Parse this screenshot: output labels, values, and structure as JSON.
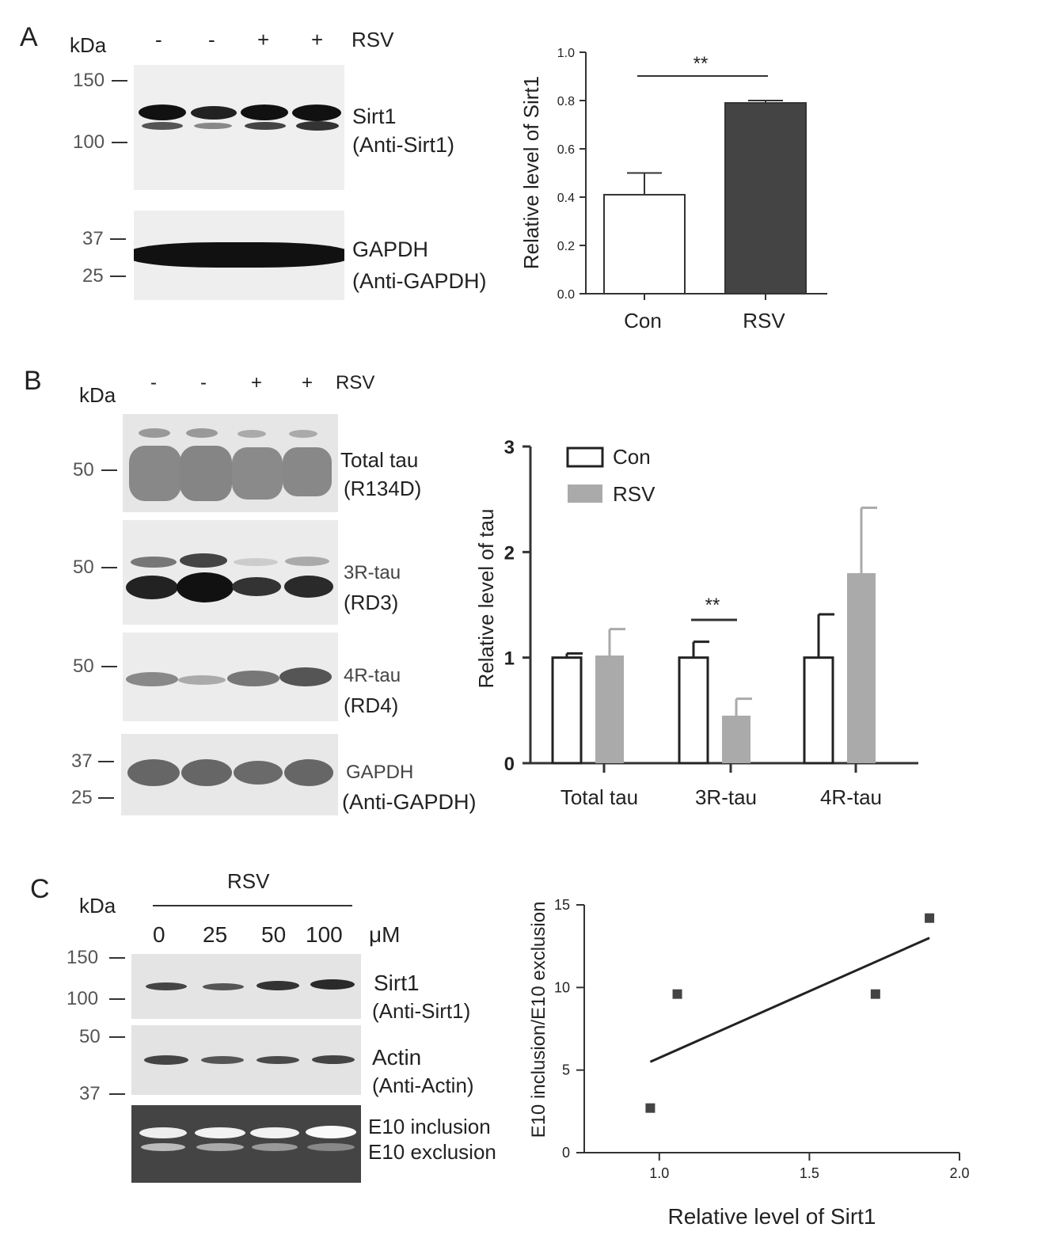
{
  "panelA": {
    "letter": "A",
    "kda": "kDa",
    "lanes": [
      "-",
      "-",
      "+",
      "+"
    ],
    "treatment": "RSV",
    "markers_top": [
      "150",
      "100"
    ],
    "markers_bottom": [
      "37",
      "25"
    ],
    "blot1_label": "Sirt1",
    "blot1_antibody": "(Anti-Sirt1)",
    "blot2_label": "GAPDH",
    "blot2_antibody": "(Anti-GAPDH)"
  },
  "panelB": {
    "letter": "B",
    "kda": "kDa",
    "lanes": [
      "-",
      "-",
      "+",
      "+"
    ],
    "treatment": "RSV",
    "blots": [
      {
        "marker": "50",
        "label": "Total tau",
        "antibody": "(R134D)"
      },
      {
        "marker": "50",
        "label": "3R-tau",
        "antibody": "(RD3)"
      },
      {
        "marker": "50",
        "label": "4R-tau",
        "antibody": "(RD4)"
      }
    ],
    "gapdh_markers": [
      "37",
      "25"
    ],
    "gapdh_label": "GAPDH",
    "gapdh_antibody": "(Anti-GAPDH)"
  },
  "panelC": {
    "letter": "C",
    "kda": "kDa",
    "treatment": "RSV",
    "doses": [
      "0",
      "25",
      "50",
      "100"
    ],
    "unit": "μM",
    "markers_sirt1": [
      "150",
      "100"
    ],
    "markers_actin": [
      "50",
      "37"
    ],
    "sirt1_label": "Sirt1",
    "sirt1_antibody": "(Anti-Sirt1)",
    "actin_label": "Actin",
    "actin_antibody": "(Anti-Actin)",
    "gel_label_top": "E10 inclusion",
    "gel_label_bottom": "E10 exclusion"
  },
  "chart_data": [
    {
      "type": "bar",
      "categories": [
        "Con",
        "RSV"
      ],
      "values": [
        0.41,
        0.79
      ],
      "errors": [
        0.09,
        0.01
      ],
      "ylabel": "Relative level of Sirt1",
      "ylim": [
        0,
        1.0
      ],
      "yticks": [
        "0.0",
        "0.2",
        "0.4",
        "0.6",
        "0.8",
        "1.0"
      ],
      "significance": "**",
      "colors": [
        "#ffffff",
        "#444444"
      ]
    },
    {
      "type": "bar",
      "categories": [
        "Total tau",
        "3R-tau",
        "4R-tau"
      ],
      "series": [
        {
          "name": "Con",
          "values": [
            1.0,
            1.0,
            1.0
          ],
          "errors": [
            0.04,
            0.15,
            0.41
          ],
          "color": "#ffffff"
        },
        {
          "name": "RSV",
          "values": [
            1.02,
            0.45,
            1.8
          ],
          "errors": [
            0.25,
            0.16,
            0.62
          ],
          "color": "#aaaaaa"
        }
      ],
      "ylabel": "Relative level of tau",
      "ylim": [
        0,
        3
      ],
      "yticks": [
        "0",
        "1",
        "2",
        "3"
      ],
      "significance": "**",
      "legend": "top-left"
    },
    {
      "type": "scatter",
      "points": [
        [
          0.97,
          2.7
        ],
        [
          1.06,
          9.6
        ],
        [
          1.72,
          9.6
        ],
        [
          1.9,
          14.2
        ]
      ],
      "fit_line": [
        [
          0.97,
          5.5
        ],
        [
          1.9,
          13.0
        ]
      ],
      "xlabel": "Relative level of Sirt1",
      "ylabel": "E10 inclusion/E10 exclusion",
      "xlim": [
        0.75,
        2.0
      ],
      "ylim": [
        0,
        15
      ],
      "xticks": [
        "1.0",
        "1.5",
        "2.0"
      ],
      "yticks": [
        "0",
        "5",
        "10",
        "15"
      ]
    }
  ]
}
